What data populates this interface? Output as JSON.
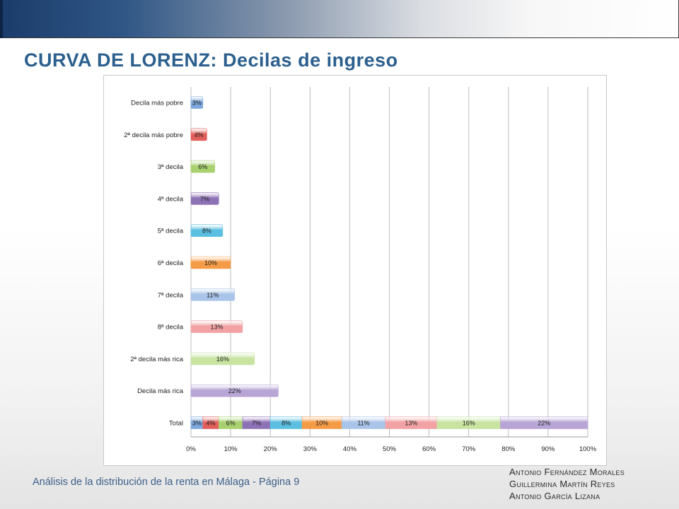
{
  "slide": {
    "title": "CURVA DE LORENZ: Decilas de ingreso",
    "footer": {
      "subject": "Análisis de la distribución de la renta en Málaga",
      "separator": "-",
      "page": "Página 9"
    },
    "authors": [
      "Antonio Fernández Morales",
      "Guillermina Martín Reyes",
      "Antonio García Lizana"
    ]
  },
  "chart_data": {
    "type": "bar",
    "orientation": "horizontal",
    "stacked": true,
    "categories": [
      "Decila más pobre",
      "2ª decila más pobre",
      "3ª decila",
      "4ª decila",
      "5ª decila",
      "6ª decila",
      "7ª decila",
      "8ª decila",
      "2ª decila más rica",
      "Decila más rica",
      "Total"
    ],
    "shares": [
      3,
      4,
      6,
      7,
      8,
      10,
      11,
      13,
      16,
      22
    ],
    "labels": [
      "3%",
      "4%",
      "6%",
      "7%",
      "8%",
      "10%",
      "11%",
      "13%",
      "16%",
      "22%"
    ],
    "colors": [
      "#7ea8de",
      "#e35f5c",
      "#a9d16f",
      "#8e72b6",
      "#5bbfe2",
      "#f59b46",
      "#a9c4e8",
      "#f2a2a4",
      "#c9e3a1",
      "#b8a5d6"
    ],
    "x_ticks": [
      "0%",
      "10%",
      "20%",
      "30%",
      "40%",
      "50%",
      "60%",
      "70%",
      "80%",
      "90%",
      "100%"
    ],
    "xlim": [
      0,
      100
    ],
    "grid": true,
    "legend": "none"
  }
}
